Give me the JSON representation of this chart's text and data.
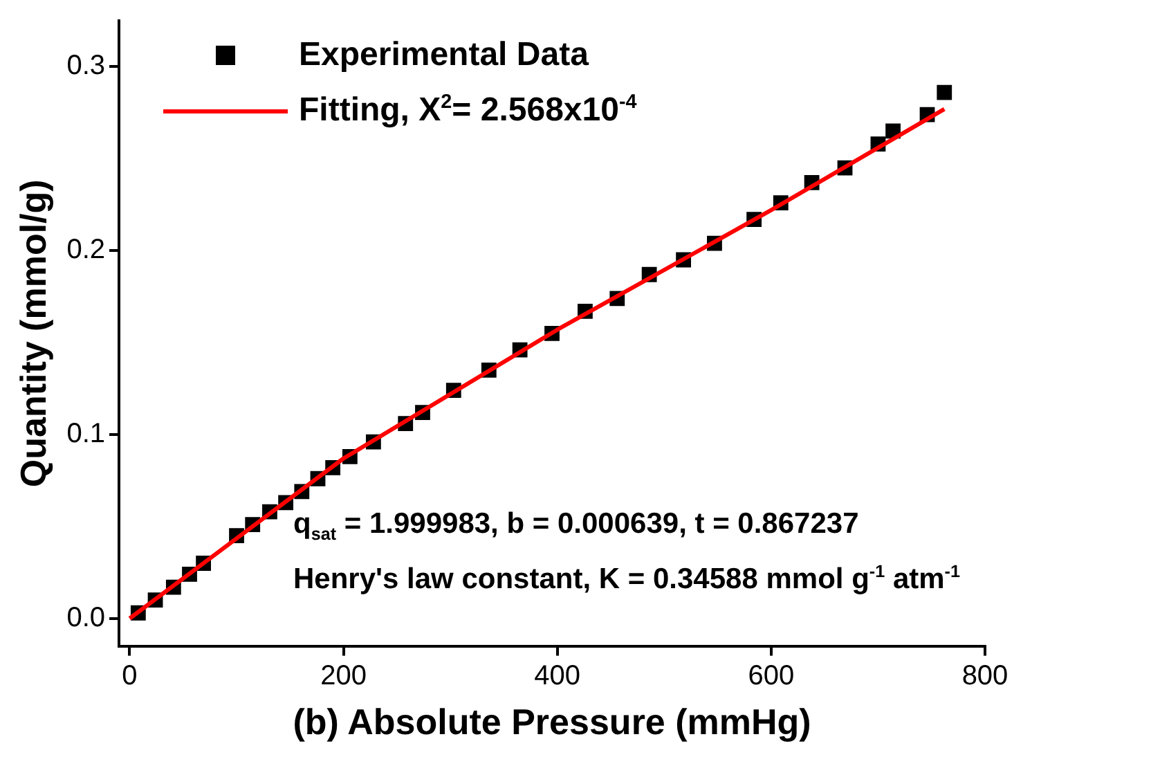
{
  "chart_data": {
    "type": "scatter",
    "xlabel": "(b) Absolute Pressure (mmHg)",
    "ylabel": "Quantity (mmol/g)",
    "xlim": [
      -10,
      800
    ],
    "xticks": [
      0,
      200,
      400,
      600,
      800
    ],
    "ylim": [
      -0.015,
      0.325
    ],
    "yticks": [
      {
        "value": 0,
        "label": "0.0"
      },
      {
        "value": 0.1,
        "label": "0.1"
      },
      {
        "value": 0.2,
        "label": "0.2"
      },
      {
        "value": 0.3,
        "label": "0.3"
      }
    ],
    "grid": false,
    "legend": "top left",
    "marker": "square",
    "series": [
      {
        "name": "Experimental Data",
        "color": "#000000",
        "x": [
          8,
          24,
          41,
          56,
          69,
          100,
          115,
          131,
          146,
          161,
          176,
          190,
          206,
          228,
          258,
          274,
          303,
          336,
          365,
          395,
          426,
          456,
          486,
          518,
          547,
          584,
          609,
          638,
          669,
          700,
          714,
          746,
          762
        ],
        "values": [
          0.003,
          0.01,
          0.017,
          0.024,
          0.03,
          0.045,
          0.051,
          0.058,
          0.063,
          0.069,
          0.076,
          0.082,
          0.088,
          0.096,
          0.106,
          0.112,
          0.124,
          0.135,
          0.146,
          0.155,
          0.167,
          0.174,
          0.187,
          0.195,
          0.204,
          0.217,
          0.226,
          0.237,
          0.245,
          0.258,
          0.265,
          0.274,
          0.286
        ]
      },
      {
        "name": "Fitting, X$^{2}$= 2.568x10$^{-4}$",
        "color": "#ff0000",
        "type": "line",
        "marker": "none",
        "line_style": "solid",
        "x": [
          0,
          200,
          400,
          600,
          762
        ],
        "values": [
          0.0,
          0.087,
          0.157,
          0.222,
          0.277
        ]
      }
    ],
    "annotations": [
      "q$_{sat}$ = 1.999983, b = 0.000639, t = 0.867237",
      "Henry's law constant, K = 0.34588 mmol g$^{-1}$ atm$^{-1}$"
    ]
  }
}
